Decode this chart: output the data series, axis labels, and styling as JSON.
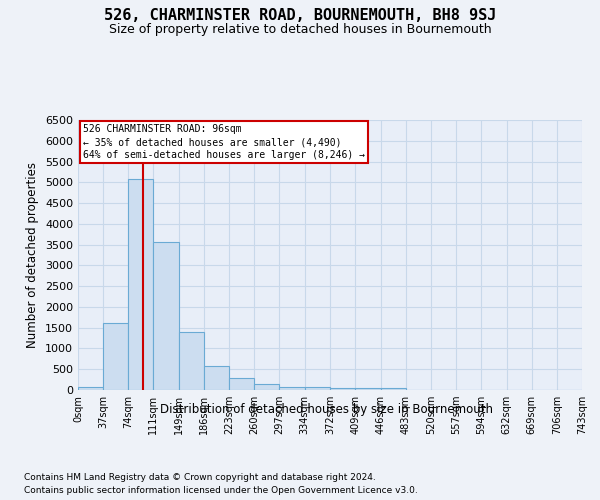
{
  "title": "526, CHARMINSTER ROAD, BOURNEMOUTH, BH8 9SJ",
  "subtitle": "Size of property relative to detached houses in Bournemouth",
  "xlabel": "Distribution of detached houses by size in Bournemouth",
  "ylabel": "Number of detached properties",
  "footer_line1": "Contains HM Land Registry data © Crown copyright and database right 2024.",
  "footer_line2": "Contains public sector information licensed under the Open Government Licence v3.0.",
  "bin_edges": [
    0,
    37,
    74,
    111,
    149,
    186,
    223,
    260,
    297,
    334,
    372,
    409,
    446,
    483,
    520,
    557,
    594,
    632,
    669,
    706,
    743
  ],
  "bar_heights": [
    75,
    1625,
    5075,
    3575,
    1400,
    575,
    285,
    135,
    80,
    75,
    55,
    50,
    45,
    0,
    0,
    0,
    0,
    0,
    0,
    0
  ],
  "bar_color": "#ccddf0",
  "bar_edgecolor": "#6aaad4",
  "grid_color": "#c8d8ea",
  "vline_x": 96,
  "vline_color": "#cc0000",
  "annotation_text": "526 CHARMINSTER ROAD: 96sqm\n← 35% of detached houses are smaller (4,490)\n64% of semi-detached houses are larger (8,246) →",
  "annotation_box_color": "#cc0000",
  "ylim": [
    0,
    6500
  ],
  "yticks": [
    0,
    500,
    1000,
    1500,
    2000,
    2500,
    3000,
    3500,
    4000,
    4500,
    5000,
    5500,
    6000,
    6500
  ],
  "title_fontsize": 11,
  "subtitle_fontsize": 9,
  "bg_color": "#eef2f8",
  "plot_bg_color": "#e8eef8"
}
